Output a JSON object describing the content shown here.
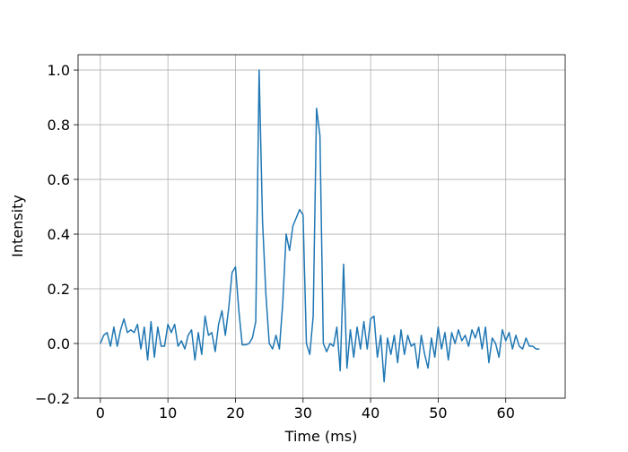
{
  "chart_data": {
    "type": "line",
    "x_label": "Time (ms)",
    "y_label": "Intensity",
    "x": [
      0,
      0.5,
      1,
      1.5,
      2,
      2.5,
      3,
      3.5,
      4,
      4.5,
      5,
      5.5,
      6,
      6.5,
      7,
      7.5,
      8,
      8.5,
      9,
      9.5,
      10,
      10.5,
      11,
      11.5,
      12,
      12.5,
      13,
      13.5,
      14,
      14.5,
      15,
      15.5,
      16,
      16.5,
      17,
      17.5,
      18,
      18.5,
      19,
      19.5,
      20,
      20.5,
      21,
      21.5,
      22,
      22.5,
      23,
      23.5,
      24,
      24.5,
      25,
      25.5,
      26,
      26.5,
      27,
      27.5,
      28,
      28.5,
      29,
      29.5,
      30,
      30.5,
      31,
      31.5,
      32,
      32.5,
      33,
      33.5,
      34,
      34.5,
      35,
      35.5,
      36,
      36.5,
      37,
      37.5,
      38,
      38.5,
      39,
      39.5,
      40,
      40.5,
      41,
      41.5,
      42,
      42.5,
      43,
      43.5,
      44,
      44.5,
      45,
      45.5,
      46,
      46.5,
      47,
      47.5,
      48,
      48.5,
      49,
      49.5,
      50,
      50.5,
      51,
      51.5,
      52,
      52.5,
      53,
      53.5,
      54,
      54.5,
      55,
      55.5,
      56,
      56.5,
      57,
      57.5,
      58,
      58.5,
      59,
      59.5,
      60,
      60.5,
      61,
      61.5,
      62,
      62.5,
      63,
      63.5,
      64,
      64.5,
      65
    ],
    "series": [
      {
        "color": "#1f77b4",
        "values": [
          0.0,
          0.03,
          0.04,
          -0.01,
          0.06,
          -0.01,
          0.05,
          0.09,
          0.04,
          0.05,
          0.04,
          0.07,
          -0.02,
          0.06,
          -0.06,
          0.08,
          -0.05,
          0.06,
          -0.01,
          -0.01,
          0.07,
          0.04,
          0.07,
          -0.01,
          0.01,
          -0.02,
          0.03,
          0.05,
          -0.06,
          0.04,
          -0.04,
          0.1,
          0.03,
          0.04,
          -0.03,
          0.07,
          0.12,
          0.03,
          0.13,
          0.26,
          0.28,
          0.12,
          -0.005,
          -0.005,
          0.0,
          0.02,
          0.08,
          1.0,
          0.45,
          0.18,
          0.0,
          -0.02,
          0.03,
          -0.02,
          0.15,
          0.4,
          0.34,
          0.43,
          0.46,
          0.49,
          0.47,
          0.0,
          -0.04,
          0.1,
          0.86,
          0.76,
          0.0,
          -0.03,
          0.0,
          -0.01,
          0.06,
          -0.1,
          0.29,
          -0.09,
          0.05,
          -0.05,
          0.06,
          -0.02,
          0.08,
          -0.02,
          0.09,
          0.1,
          -0.05,
          0.03,
          -0.14,
          0.02,
          -0.04,
          0.03,
          -0.07,
          0.05,
          -0.04,
          0.03,
          -0.01,
          0.0,
          -0.09,
          0.03,
          -0.04,
          -0.09,
          0.02,
          -0.05,
          0.06,
          -0.02,
          0.04,
          -0.06,
          0.04,
          0.0,
          0.05,
          0.01,
          0.03,
          -0.01,
          0.05,
          0.02,
          0.06,
          -0.02,
          0.06,
          -0.07,
          0.02,
          0.0,
          -0.05,
          0.05,
          0.01,
          0.04,
          -0.02,
          0.03,
          -0.01,
          -0.02,
          0.02,
          -0.01,
          -0.01,
          -0.02,
          -0.02
        ]
      }
    ],
    "xlim": [
      -3.3,
      68.8
    ],
    "ylim": [
      -0.2,
      1.056
    ],
    "xticks": [
      0,
      10,
      20,
      30,
      40,
      50,
      60
    ],
    "yticks": [
      {
        "value": -0.2,
        "label": "−0.2"
      },
      {
        "value": 0,
        "label": "0.0"
      },
      {
        "value": 0.2,
        "label": "0.2"
      },
      {
        "value": 0.4,
        "label": "0.4"
      },
      {
        "value": 0.6,
        "label": "0.6"
      },
      {
        "value": 0.8,
        "label": "0.8"
      },
      {
        "value": 1.0,
        "label": "1.0"
      }
    ],
    "grid": true
  }
}
